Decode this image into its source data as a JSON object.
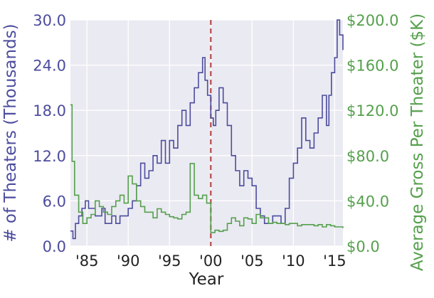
{
  "chart_data": {
    "type": "line",
    "xlabel": "Year",
    "x_ticks": [
      "'85",
      "'90",
      "'95",
      "'00",
      "'05",
      "'10",
      "'15"
    ],
    "x_tick_years": [
      1985,
      1990,
      1995,
      2000,
      2005,
      2010,
      2015
    ],
    "xlim": [
      1983,
      2016
    ],
    "left_axis": {
      "label": "# of Theaters (Thousands)",
      "ticks": [
        "0.0",
        "6.0",
        "12.0",
        "18.0",
        "24.0",
        "30.0"
      ],
      "tick_values": [
        0,
        6,
        12,
        18,
        24,
        30
      ],
      "ylim": [
        0,
        30
      ],
      "color": "#4c4c9e"
    },
    "right_axis": {
      "label": "Average Gross Per Theater ($K)",
      "ticks": [
        "$0.0",
        "$40.0",
        "$80.0",
        "$120.0",
        "$160.0",
        "$200.0"
      ],
      "tick_values": [
        0,
        40,
        80,
        120,
        160,
        200
      ],
      "ylim": [
        0,
        200
      ],
      "color": "#55a04c"
    },
    "vline": {
      "x": 2000,
      "color": "#b54c4c",
      "style": "dashed"
    },
    "grid": true,
    "background": "#eaeaf2",
    "series": [
      {
        "axis": "left",
        "color": "#4c4c9e",
        "x": [
          1983.0,
          1983.3,
          1983.6,
          1984.0,
          1984.4,
          1984.8,
          1985.2,
          1985.6,
          1986.0,
          1986.4,
          1986.8,
          1987.2,
          1987.6,
          1988.0,
          1988.5,
          1989.0,
          1989.5,
          1990.0,
          1990.5,
          1991.0,
          1991.5,
          1992.0,
          1992.5,
          1993.0,
          1993.5,
          1994.0,
          1994.5,
          1995.0,
          1995.5,
          1996.0,
          1996.5,
          1997.0,
          1997.5,
          1998.0,
          1998.5,
          1999.0,
          1999.3,
          1999.6,
          2000.0,
          2000.3,
          2000.6,
          2001.0,
          2001.5,
          2002.0,
          2002.5,
          2003.0,
          2003.5,
          2004.0,
          2004.5,
          2005.0,
          2005.5,
          2006.0,
          2006.5,
          2007.0,
          2007.5,
          2008.0,
          2008.5,
          2009.0,
          2009.5,
          2010.0,
          2010.5,
          2011.0,
          2011.5,
          2012.0,
          2012.5,
          2013.0,
          2013.5,
          2014.0,
          2014.3,
          2014.6,
          2015.0,
          2015.3,
          2015.6,
          2016.0
        ],
        "values": [
          2,
          1,
          3,
          4,
          5,
          6,
          5,
          5,
          4,
          4,
          5,
          3,
          3,
          4,
          3,
          4,
          4,
          5,
          6,
          8,
          11,
          9,
          10,
          12,
          11,
          14,
          11,
          14,
          13,
          16,
          18,
          16,
          19,
          21,
          23,
          25,
          22,
          20,
          17,
          16,
          18,
          21,
          19,
          16,
          12,
          10,
          8,
          10,
          9,
          8,
          5,
          4,
          3,
          3,
          4,
          4,
          3,
          5,
          9,
          11,
          13,
          17,
          14,
          13,
          15,
          17,
          20,
          16,
          20,
          23,
          25,
          30,
          28,
          26
        ]
      },
      {
        "axis": "right",
        "color": "#55a04c",
        "x": [
          1983.0,
          1983.2,
          1983.5,
          1984.0,
          1984.5,
          1985.0,
          1985.5,
          1986.0,
          1986.5,
          1987.0,
          1987.5,
          1988.0,
          1988.5,
          1989.0,
          1989.5,
          1990.0,
          1990.5,
          1991.0,
          1991.5,
          1992.0,
          1992.5,
          1993.0,
          1993.5,
          1994.0,
          1994.5,
          1995.0,
          1995.5,
          1996.0,
          1996.5,
          1997.0,
          1997.5,
          1998.0,
          1998.5,
          1999.0,
          1999.5,
          2000.0,
          2000.5,
          2001.0,
          2001.5,
          2002.0,
          2002.5,
          2003.0,
          2003.5,
          2004.0,
          2004.5,
          2005.0,
          2005.5,
          2006.0,
          2006.5,
          2007.0,
          2007.5,
          2008.0,
          2008.5,
          2009.0,
          2009.5,
          2010.0,
          2010.5,
          2011.0,
          2011.5,
          2012.0,
          2012.5,
          2013.0,
          2013.5,
          2014.0,
          2014.5,
          2015.0,
          2015.5,
          2016.0
        ],
        "values": [
          125,
          75,
          45,
          30,
          20,
          25,
          28,
          40,
          35,
          30,
          28,
          35,
          40,
          45,
          38,
          62,
          55,
          40,
          35,
          30,
          30,
          25,
          33,
          30,
          28,
          26,
          25,
          24,
          28,
          30,
          73,
          45,
          42,
          45,
          38,
          12,
          14,
          13,
          14,
          20,
          25,
          22,
          18,
          25,
          24,
          20,
          28,
          25,
          25,
          20,
          21,
          20,
          20,
          19,
          20,
          20,
          18,
          19,
          19,
          19,
          18,
          19,
          17,
          19,
          18,
          17,
          17,
          16
        ]
      }
    ]
  }
}
